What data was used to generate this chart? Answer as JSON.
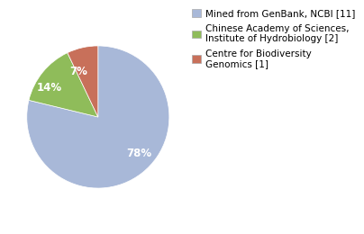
{
  "slices": [
    78,
    14,
    7
  ],
  "labels": [
    "78%",
    "14%",
    "7%"
  ],
  "colors": [
    "#a8b8d8",
    "#8fbc5a",
    "#c8705a"
  ],
  "legend_labels": [
    "Mined from GenBank, NCBI [11]",
    "Chinese Academy of Sciences,\nInstitute of Hydrobiology [2]",
    "Centre for Biodiversity\nGenomics [1]"
  ],
  "legend_colors": [
    "#a8b8d8",
    "#8fbc5a",
    "#c8705a"
  ],
  "startangle": 90,
  "background_color": "#ffffff",
  "label_fontsize": 8.5,
  "legend_fontsize": 7.5
}
